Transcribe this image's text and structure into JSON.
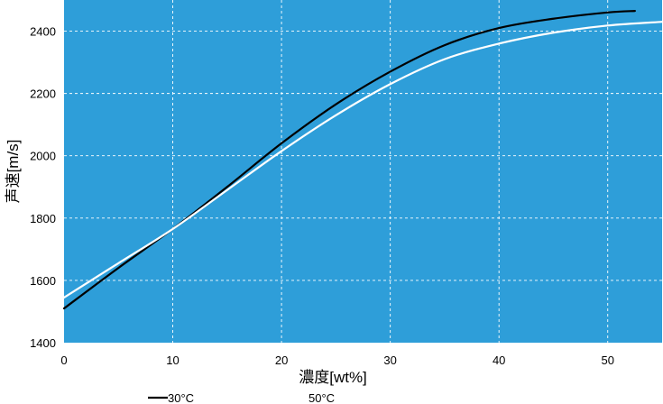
{
  "chart_data": {
    "type": "line",
    "title": "",
    "xlabel": "濃度[wt%]",
    "ylabel": "声速[m/s]",
    "xlim": [
      0,
      55
    ],
    "ylim": [
      1400,
      2500
    ],
    "x_ticks": [
      "0",
      "10",
      "20",
      "30",
      "40",
      "50"
    ],
    "y_ticks": [
      "1400",
      "1600",
      "1800",
      "2000",
      "2200",
      "2400"
    ],
    "grid": true,
    "legend_position": "bottom",
    "series": [
      {
        "name": "30°C",
        "color": "#000000",
        "x": [
          0,
          5,
          10,
          15,
          20,
          25,
          30,
          35,
          40,
          45,
          50,
          52.5
        ],
        "y": [
          1510,
          1640,
          1765,
          1900,
          2040,
          2165,
          2270,
          2355,
          2410,
          2440,
          2460,
          2465
        ]
      },
      {
        "name": "50°C",
        "color": "#ffffff",
        "x": [
          0,
          5,
          10,
          15,
          20,
          25,
          30,
          35,
          40,
          45,
          50,
          55
        ],
        "y": [
          1545,
          1655,
          1765,
          1890,
          2015,
          2130,
          2230,
          2310,
          2360,
          2395,
          2418,
          2430
        ]
      }
    ],
    "colors": {
      "plot_background": "#2e9ed9",
      "grid": "#ffffff"
    }
  }
}
